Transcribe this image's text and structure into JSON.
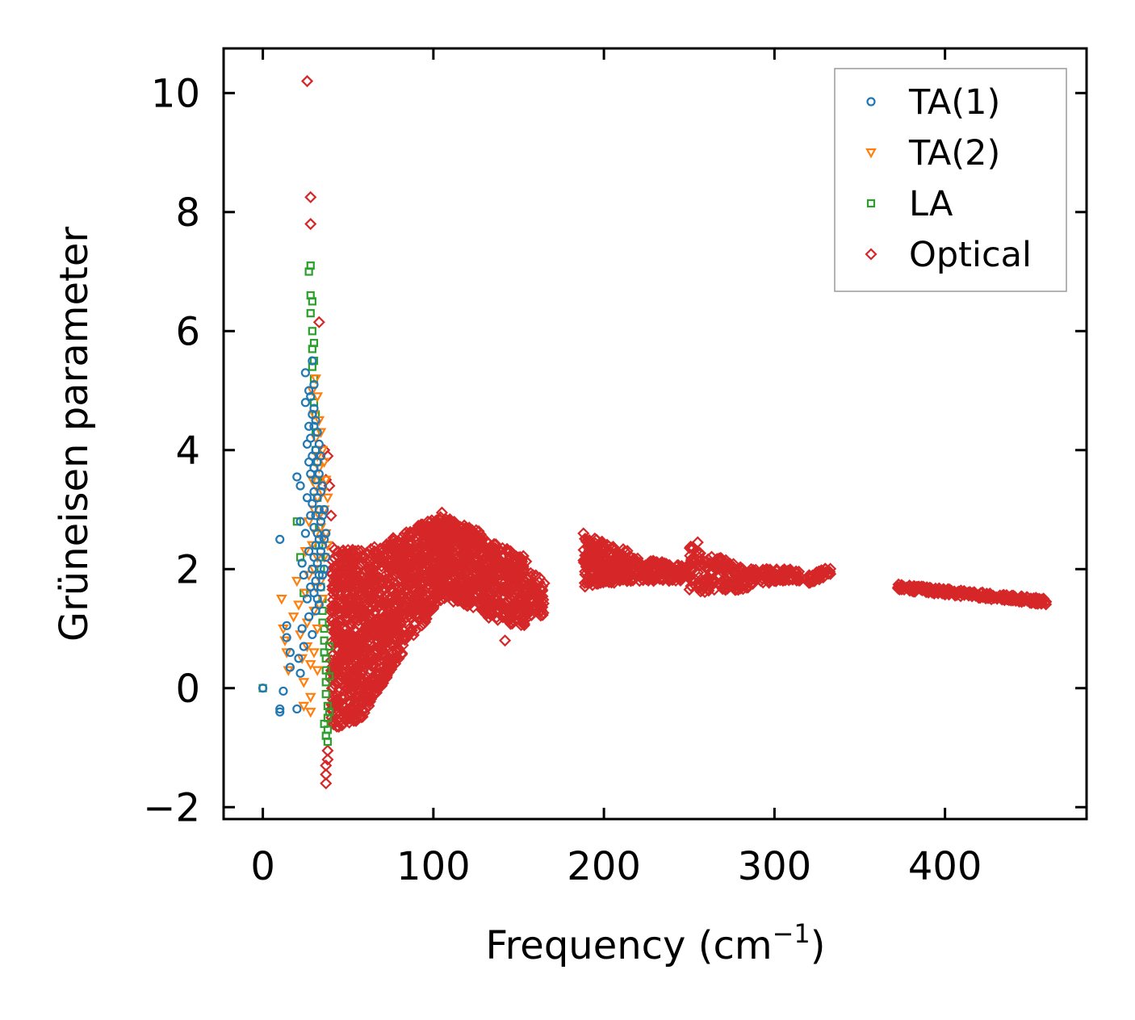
{
  "chart_data": {
    "type": "scatter",
    "title": "",
    "xlabel": "Frequency (cm",
    "xlabel_superscript": "−1",
    "xlabel_suffix": ")",
    "ylabel": "Grüneisen parameter",
    "xlim": [
      -23,
      483
    ],
    "ylim": [
      -2.2,
      10.75
    ],
    "xticks": [
      0,
      100,
      200,
      300,
      400
    ],
    "xtick_labels": [
      "0",
      "100",
      "200",
      "300",
      "400"
    ],
    "yticks": [
      -2,
      0,
      2,
      4,
      6,
      8,
      10
    ],
    "ytick_labels": [
      "−2",
      "0",
      "2",
      "4",
      "6",
      "8",
      "10"
    ],
    "ticks_direction": "in",
    "ticks_on_all_sides": true,
    "legend": {
      "position": "top-right",
      "entries": [
        "TA(1)",
        "TA(2)",
        "LA",
        "Optical"
      ]
    },
    "series": [
      {
        "name": "TA(1)",
        "marker": "circle",
        "color": "#1f77b4",
        "points": [
          [
            0,
            0
          ],
          [
            10,
            -0.4
          ],
          [
            10,
            -0.35
          ],
          [
            10,
            2.5
          ],
          [
            12,
            -0.05
          ],
          [
            14,
            0.85
          ],
          [
            14,
            1.05
          ],
          [
            16,
            0.35
          ],
          [
            16,
            0.6
          ],
          [
            20,
            -0.35
          ],
          [
            20,
            3.55
          ],
          [
            21,
            0.5
          ],
          [
            22,
            2.8
          ],
          [
            22,
            3.4
          ],
          [
            22,
            0.25
          ],
          [
            23,
            1.0
          ],
          [
            23,
            2.1
          ],
          [
            24,
            0.7
          ],
          [
            24,
            1.9
          ],
          [
            25,
            5.3
          ],
          [
            25,
            4.8
          ],
          [
            25,
            2.6
          ],
          [
            26,
            3.2
          ],
          [
            26,
            1.5
          ],
          [
            26,
            4.1
          ],
          [
            27,
            5.0
          ],
          [
            27,
            4.4
          ],
          [
            27,
            3.8
          ],
          [
            27,
            2.3
          ],
          [
            27,
            1.2
          ],
          [
            28,
            4.9
          ],
          [
            28,
            4.2
          ],
          [
            28,
            3.6
          ],
          [
            28,
            2.9
          ],
          [
            28,
            1.7
          ],
          [
            29,
            5.5
          ],
          [
            29,
            4.6
          ],
          [
            29,
            3.9
          ],
          [
            29,
            3.1
          ],
          [
            29,
            2.0
          ],
          [
            29,
            0.9
          ],
          [
            30,
            5.1
          ],
          [
            30,
            4.7
          ],
          [
            30,
            4.4
          ],
          [
            30,
            3.7
          ],
          [
            30,
            3.3
          ],
          [
            30,
            2.7
          ],
          [
            30,
            2.2
          ],
          [
            30,
            1.6
          ],
          [
            31,
            4.5
          ],
          [
            31,
            4.0
          ],
          [
            31,
            3.5
          ],
          [
            31,
            2.9
          ],
          [
            31,
            2.4
          ],
          [
            31,
            1.8
          ],
          [
            31,
            1.3
          ],
          [
            32,
            4.3
          ],
          [
            32,
            3.8
          ],
          [
            32,
            3.2
          ],
          [
            32,
            2.6
          ],
          [
            32,
            2.1
          ],
          [
            32,
            1.5
          ],
          [
            33,
            4.1
          ],
          [
            33,
            3.6
          ],
          [
            33,
            3.0
          ],
          [
            33,
            2.5
          ],
          [
            33,
            1.9
          ],
          [
            33,
            1.4
          ],
          [
            34,
            3.9
          ],
          [
            34,
            3.3
          ],
          [
            34,
            2.8
          ],
          [
            34,
            2.3
          ],
          [
            34,
            1.7
          ],
          [
            35,
            3.4
          ],
          [
            35,
            2.9
          ],
          [
            35,
            2.4
          ],
          [
            35,
            1.9
          ],
          [
            36,
            3.0
          ],
          [
            36,
            2.5
          ],
          [
            36,
            2.0
          ],
          [
            37,
            2.6
          ],
          [
            37,
            2.2
          ]
        ]
      },
      {
        "name": "TA(2)",
        "marker": "triangle-down",
        "color": "#ff7f0e",
        "points": [
          [
            11,
            1.5
          ],
          [
            12,
            1.0
          ],
          [
            13,
            0.8
          ],
          [
            14,
            0.6
          ],
          [
            15,
            0.3
          ],
          [
            18,
            1.2
          ],
          [
            20,
            1.8
          ],
          [
            21,
            1.4
          ],
          [
            22,
            0.9
          ],
          [
            23,
            0.5
          ],
          [
            24,
            0.1
          ],
          [
            24,
            -0.3
          ],
          [
            25,
            1.6
          ],
          [
            25,
            2.3
          ],
          [
            26,
            1.1
          ],
          [
            26,
            0.7
          ],
          [
            27,
            1.9
          ],
          [
            27,
            2.8
          ],
          [
            28,
            0.4
          ],
          [
            28,
            -0.4
          ],
          [
            28,
            -0.15
          ],
          [
            29,
            2.4
          ],
          [
            29,
            3.5
          ],
          [
            29,
            5.0
          ],
          [
            30,
            4.6
          ],
          [
            30,
            3.0
          ],
          [
            30,
            2.0
          ],
          [
            30,
            1.3
          ],
          [
            30,
            0.6
          ],
          [
            31,
            5.2
          ],
          [
            31,
            4.2
          ],
          [
            31,
            3.4
          ],
          [
            31,
            2.6
          ],
          [
            31,
            1.7
          ],
          [
            32,
            4.9
          ],
          [
            32,
            3.9
          ],
          [
            32,
            3.2
          ],
          [
            32,
            2.2
          ],
          [
            32,
            1.0
          ],
          [
            32,
            0.3
          ],
          [
            33,
            4.5
          ],
          [
            33,
            3.7
          ],
          [
            33,
            2.9
          ],
          [
            33,
            1.4
          ],
          [
            34,
            4.3
          ],
          [
            34,
            3.5
          ],
          [
            34,
            2.7
          ],
          [
            34,
            1.8
          ],
          [
            35,
            4.0
          ],
          [
            35,
            3.3
          ],
          [
            35,
            2.5
          ],
          [
            35,
            1.5
          ],
          [
            36,
            3.8
          ],
          [
            36,
            3.0
          ],
          [
            36,
            2.2
          ],
          [
            37,
            3.5
          ],
          [
            37,
            2.6
          ],
          [
            38,
            3.2
          ],
          [
            38,
            2.4
          ]
        ]
      },
      {
        "name": "LA",
        "marker": "square",
        "color": "#2ca02c",
        "points": [
          [
            0,
            0
          ],
          [
            20,
            2.8
          ],
          [
            22,
            2.2
          ],
          [
            24,
            1.6
          ],
          [
            27,
            7.0
          ],
          [
            28,
            7.1
          ],
          [
            28,
            6.6
          ],
          [
            28,
            6.3
          ],
          [
            29,
            6.5
          ],
          [
            29,
            6.0
          ],
          [
            29,
            5.7
          ],
          [
            29,
            5.4
          ],
          [
            30,
            5.8
          ],
          [
            30,
            5.5
          ],
          [
            30,
            5.2
          ],
          [
            30,
            4.8
          ],
          [
            31,
            4.6
          ],
          [
            31,
            4.3
          ],
          [
            31,
            4.0
          ],
          [
            32,
            3.8
          ],
          [
            32,
            3.5
          ],
          [
            32,
            3.2
          ],
          [
            33,
            3.0
          ],
          [
            33,
            2.7
          ],
          [
            33,
            2.4
          ],
          [
            34,
            2.2
          ],
          [
            34,
            2.0
          ],
          [
            34,
            1.7
          ],
          [
            35,
            1.5
          ],
          [
            35,
            1.3
          ],
          [
            35,
            1.1
          ],
          [
            36,
            1.0
          ],
          [
            36,
            0.8
          ],
          [
            36,
            0.6
          ],
          [
            37,
            0.5
          ],
          [
            37,
            0.3
          ],
          [
            37,
            0.1
          ],
          [
            37,
            -0.1
          ],
          [
            38,
            -0.3
          ],
          [
            38,
            -0.5
          ],
          [
            38,
            -0.7
          ],
          [
            38,
            -0.9
          ],
          [
            39,
            -0.4
          ],
          [
            39,
            0.2
          ],
          [
            39,
            0.7
          ],
          [
            36,
            -0.6
          ],
          [
            37,
            -0.8
          ]
        ]
      },
      {
        "name": "Optical",
        "marker": "diamond",
        "color": "#d62728",
        "points": [
          [
            26,
            10.2
          ],
          [
            28,
            8.25
          ],
          [
            28,
            7.8
          ],
          [
            33,
            6.15
          ],
          [
            37,
            -1.6
          ],
          [
            37,
            -1.45
          ],
          [
            37,
            -1.3
          ],
          [
            38,
            -1.2
          ],
          [
            38,
            -1.05
          ],
          [
            36,
            4.0
          ],
          [
            37,
            3.5
          ],
          [
            38,
            3.9
          ],
          [
            39,
            3.4
          ],
          [
            40,
            2.9
          ],
          [
            142,
            0.8
          ],
          [
            277,
            1.65
          ],
          [
            255,
            2.45
          ],
          [
            330,
            2.0
          ],
          [
            105,
            2.95
          ],
          [
            188,
            2.6
          ]
        ],
        "bands": [
          {
            "x0": 40,
            "x1": 60,
            "y_lo0": -0.7,
            "y_hi0": 2.4,
            "y_lo1": -0.5,
            "y_hi1": 2.3,
            "n": 520
          },
          {
            "x0": 60,
            "x1": 80,
            "y_lo0": -0.4,
            "y_hi0": 2.3,
            "y_lo1": 0.5,
            "y_hi1": 2.6,
            "n": 420
          },
          {
            "x0": 80,
            "x1": 105,
            "y_lo0": 0.5,
            "y_hi0": 2.6,
            "y_lo1": 1.5,
            "y_hi1": 2.9,
            "n": 420
          },
          {
            "x0": 105,
            "x1": 130,
            "y_lo0": 1.5,
            "y_hi0": 2.9,
            "y_lo1": 1.3,
            "y_hi1": 2.6,
            "n": 380
          },
          {
            "x0": 130,
            "x1": 155,
            "y_lo0": 1.2,
            "y_hi0": 2.5,
            "y_lo1": 1.0,
            "y_hi1": 2.2,
            "n": 300
          },
          {
            "x0": 155,
            "x1": 165,
            "y_lo0": 1.2,
            "y_hi0": 2.0,
            "y_lo1": 1.2,
            "y_hi1": 1.8,
            "n": 60
          },
          {
            "x0": 188,
            "x1": 215,
            "y_lo0": 1.7,
            "y_hi0": 2.6,
            "y_lo1": 1.8,
            "y_hi1": 2.3,
            "n": 220
          },
          {
            "x0": 215,
            "x1": 250,
            "y_lo0": 1.8,
            "y_hi0": 2.2,
            "y_lo1": 1.8,
            "y_hi1": 2.05,
            "n": 180
          },
          {
            "x0": 250,
            "x1": 285,
            "y_lo0": 1.6,
            "y_hi0": 2.4,
            "y_lo1": 1.65,
            "y_hi1": 2.0,
            "n": 160
          },
          {
            "x0": 285,
            "x1": 315,
            "y_lo0": 1.75,
            "y_hi0": 2.0,
            "y_lo1": 1.8,
            "y_hi1": 2.0,
            "n": 100
          },
          {
            "x0": 320,
            "x1": 333,
            "y_lo0": 1.75,
            "y_hi0": 1.9,
            "y_lo1": 1.9,
            "y_hi1": 2.05,
            "n": 40
          },
          {
            "x0": 372,
            "x1": 460,
            "y_lo0": 1.65,
            "y_hi0": 1.75,
            "y_lo1": 1.4,
            "y_hi1": 1.5,
            "n": 260
          }
        ]
      }
    ]
  }
}
